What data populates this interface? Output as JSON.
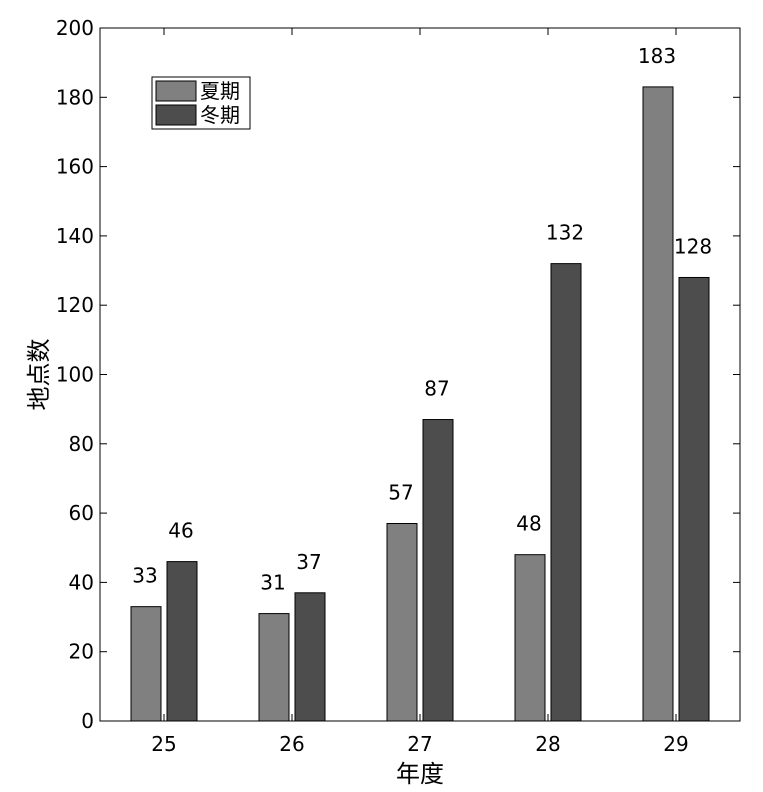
{
  "chart_data": {
    "type": "bar",
    "categories": [
      "25",
      "26",
      "27",
      "28",
      "29"
    ],
    "series": [
      {
        "name": "夏期",
        "values": [
          33,
          31,
          57,
          48,
          183
        ],
        "color": "#808080"
      },
      {
        "name": "冬期",
        "values": [
          46,
          37,
          87,
          132,
          128
        ],
        "color": "#4d4d4d"
      }
    ],
    "xlabel": "年度",
    "ylabel": "地点数",
    "ylim": [
      0,
      200
    ],
    "yticks": [
      0,
      20,
      40,
      60,
      80,
      100,
      120,
      140,
      160,
      180,
      200
    ],
    "data_labels": true,
    "grid": false,
    "legend": "top-left"
  }
}
